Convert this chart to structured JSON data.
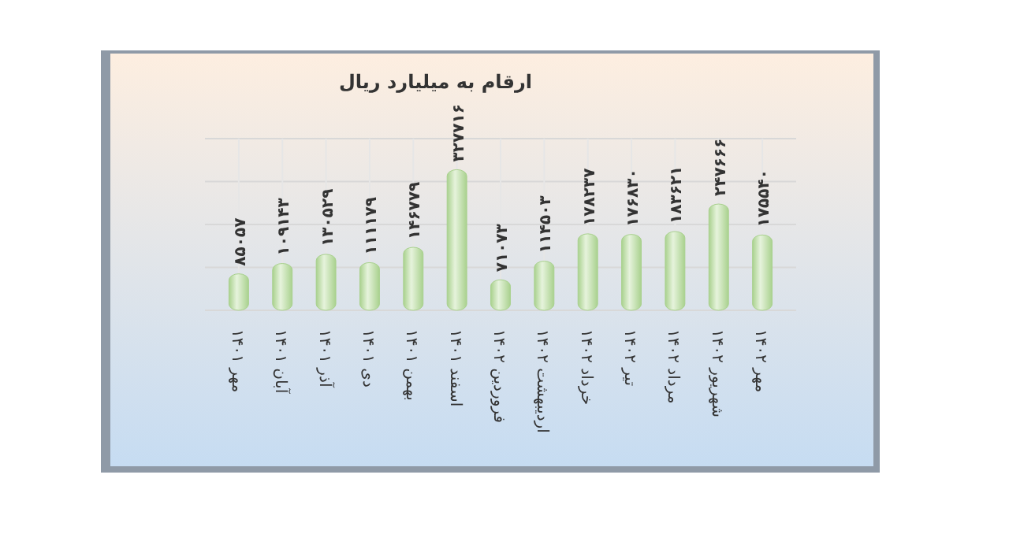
{
  "chart_data": {
    "type": "bar",
    "title": "ارقام به میلیارد ریال",
    "categories": [
      "مهر ۱۴۰۱",
      "آبان ۱۴۰۱",
      "آذر ۱۴۰۱",
      "دی ۱۴۰۱",
      "بهمن ۱۴۰۱",
      "اسفند ۱۴۰۱",
      "فروردین ۱۴۰۲",
      "اردیبهشت ۱۴۰۲",
      "خرداد ۱۴۰۲",
      "تیر ۱۴۰۲",
      "مرداد ۱۴۰۲",
      "شهریور ۱۴۰۲",
      "مهر ۱۴۰۲"
    ],
    "values": [
      85057,
      109143,
      130529,
      111179,
      146779,
      327716,
      71073,
      114503,
      178237,
      176830,
      183621,
      247666,
      175540
    ],
    "value_labels": [
      "۸۵۰۵۷",
      "۱۰۹۱۴۳",
      "۱۳۰۵۲۹",
      "۱۱۱۱۷۹",
      "۱۴۶۷۷۹",
      "۳۲۷۷۱۶",
      "۷۱۰۷۳",
      "۱۱۴۵۰۳",
      "۱۷۸۲۳۷",
      "۱۷۶۸۳۰",
      "۱۸۳۶۲۱",
      "۲۴۷۶۶۶",
      "۱۷۵۵۴۰"
    ],
    "color": "#a9d18e",
    "ylim": [
      0,
      400000
    ],
    "yticks": [
      {
        "value": 0,
        "label": null
      },
      {
        "value": 100000,
        "label": null
      },
      {
        "value": 200000,
        "label": null
      },
      {
        "value": 300000,
        "label": null
      },
      {
        "value": 400000,
        "label": null
      }
    ],
    "grid": true,
    "tick_labels": "x"
  }
}
